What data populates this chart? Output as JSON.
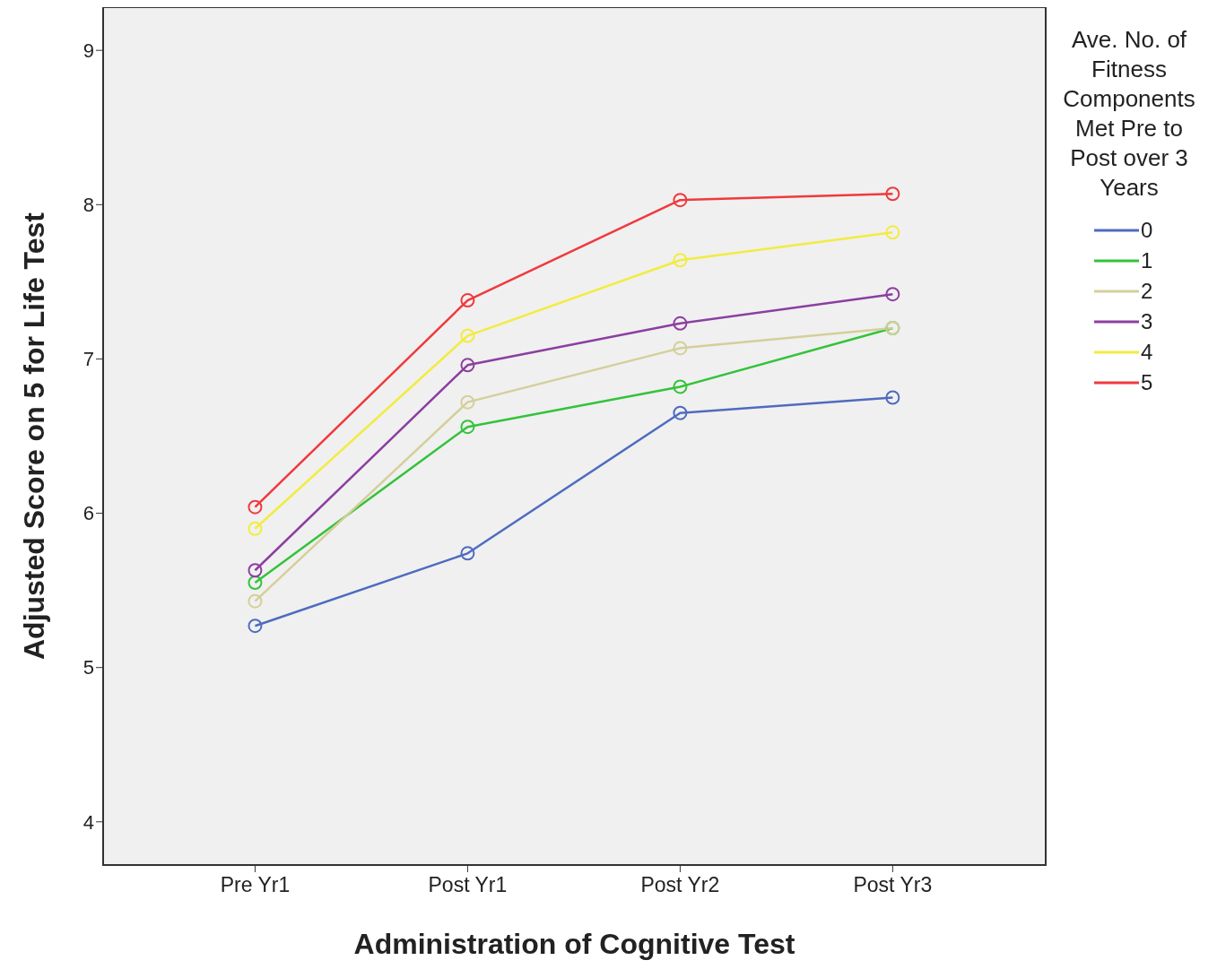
{
  "chart_data": {
    "type": "line",
    "xlabel": "Administration of Cognitive Test",
    "ylabel": "Adjusted Score on 5 for Life Test",
    "legend_title": "Ave. No. of Fitness Components Met Pre to Post over 3 Years",
    "categories": [
      "Pre Yr1",
      "Post Yr1",
      "Post Yr2",
      "Post Yr3"
    ],
    "series": [
      {
        "name": "0",
        "color": "#4f6bbf",
        "values": [
          5.27,
          5.74,
          6.65,
          6.75
        ]
      },
      {
        "name": "1",
        "color": "#33c33a",
        "values": [
          5.55,
          6.56,
          6.82,
          7.2
        ]
      },
      {
        "name": "2",
        "color": "#d4cf9a",
        "values": [
          5.43,
          6.72,
          7.07,
          7.2
        ]
      },
      {
        "name": "3",
        "color": "#8b3fa0",
        "values": [
          5.63,
          6.96,
          7.23,
          7.42
        ]
      },
      {
        "name": "4",
        "color": "#f2ec40",
        "values": [
          5.9,
          7.15,
          7.64,
          7.82
        ]
      },
      {
        "name": "5",
        "color": "#f0393d",
        "values": [
          6.04,
          7.38,
          8.03,
          8.07
        ]
      }
    ],
    "ylim": [
      3.72,
      9.28
    ],
    "yticks": [
      4,
      5,
      6,
      7,
      8,
      9
    ],
    "legend": "right",
    "marker": "circle",
    "line_style": "solid"
  }
}
